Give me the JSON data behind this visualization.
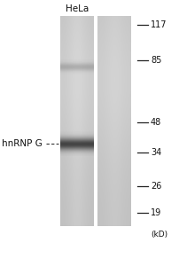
{
  "fig_width": 2.03,
  "fig_height": 3.0,
  "dpi": 100,
  "bg_color": "#ffffff",
  "title_text": "HeLa",
  "title_fontsize": 7.5,
  "marker_label": "hnRNP G",
  "marker_label_fontsize": 7.5,
  "mw_markers": [
    "117",
    "85",
    "48",
    "34",
    "26",
    "19"
  ],
  "mw_unit": "(kD)",
  "mw_fontsize": 7.0,
  "band_color": "#2a2a2a",
  "faint_band_color": "#909090",
  "lane1_color": "#c2c2c2",
  "lane2_color": "#cccccc"
}
